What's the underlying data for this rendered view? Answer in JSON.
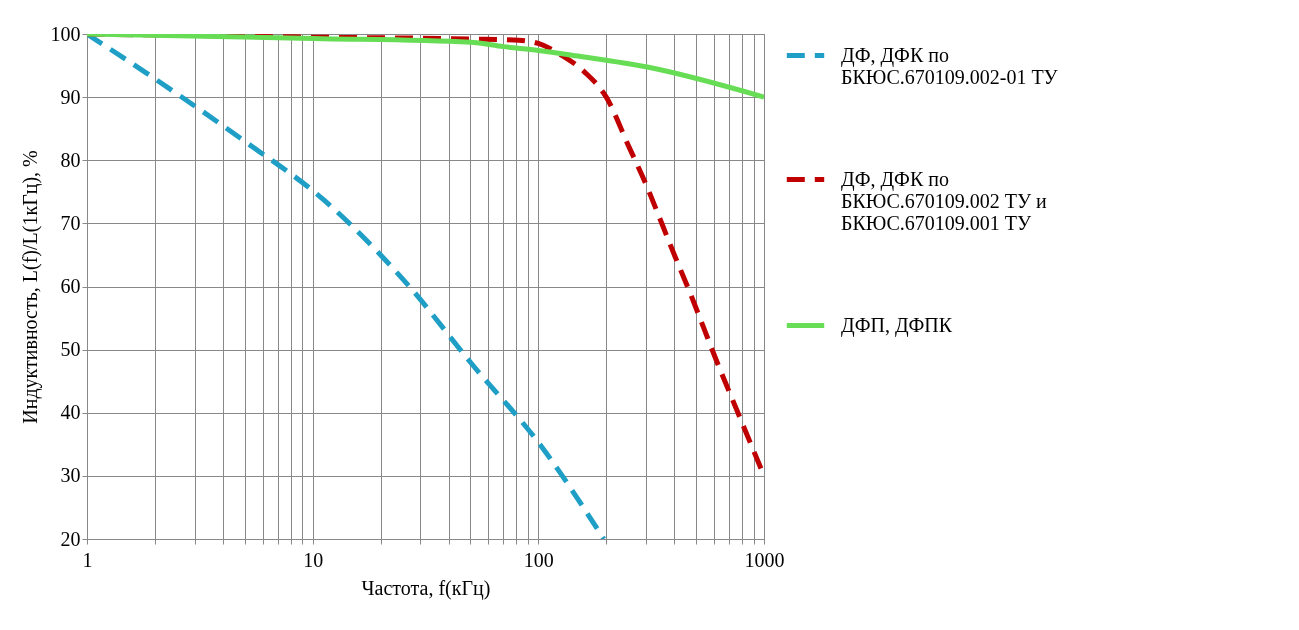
{
  "chart_data": {
    "type": "line",
    "xlabel": "Частота, f(кГц)",
    "ylabel": "Индуктивность, L(f)/L(1кГц), %",
    "log": "x",
    "grid": true,
    "legend": "right",
    "xlim": [
      1,
      1000
    ],
    "ylim": [
      20,
      100
    ],
    "xticks": [
      1,
      {
        "value": 2,
        "label": null
      },
      {
        "value": 3,
        "label": null
      },
      {
        "value": 4,
        "label": null
      },
      {
        "value": 5,
        "label": null
      },
      {
        "value": 6,
        "label": null
      },
      {
        "value": 7,
        "label": null
      },
      {
        "value": 8,
        "label": null
      },
      {
        "value": 9,
        "label": null
      },
      10,
      {
        "value": 20,
        "label": null
      },
      {
        "value": 30,
        "label": null
      },
      {
        "value": 40,
        "label": null
      },
      {
        "value": 50,
        "label": null
      },
      {
        "value": 60,
        "label": null
      },
      {
        "value": 70,
        "label": null
      },
      {
        "value": 80,
        "label": null
      },
      {
        "value": 90,
        "label": null
      },
      100,
      {
        "value": 200,
        "label": null
      },
      {
        "value": 300,
        "label": null
      },
      {
        "value": 400,
        "label": null
      },
      {
        "value": 500,
        "label": null
      },
      {
        "value": 600,
        "label": null
      },
      {
        "value": 700,
        "label": null
      },
      {
        "value": 800,
        "label": null
      },
      {
        "value": 900,
        "label": null
      },
      1000
    ],
    "yticks": [
      20,
      30,
      40,
      50,
      60,
      70,
      80,
      90,
      100
    ],
    "series": [
      {
        "name": "ДФ, ДФК по БКЮС.670109.002-01 ТУ",
        "color": "#1f9fc6",
        "line_style": "dashed",
        "x": [
          1,
          1.8,
          5,
          11.3,
          20,
          26.8,
          50,
          104,
          195
        ],
        "values": [
          100,
          94,
          83,
          73.6,
          65,
          60,
          48,
          34.5,
          20
        ]
      },
      {
        "name": "ДФ, ДФК по БКЮС.670109.002 ТУ и БКЮС.670109.001 ТУ",
        "color": "#c00000",
        "line_style": "dashed",
        "x": [
          1,
          10,
          50,
          82,
          100,
          126,
          160,
          200,
          253,
          289,
          405,
          458,
          636,
          717,
          1000
        ],
        "values": [
          100,
          99.5,
          99.2,
          99,
          98.5,
          96.7,
          94,
          90,
          82,
          77.5,
          64.6,
          60,
          47,
          42.5,
          30
        ]
      },
      {
        "name": "ДФП, ДФПК",
        "color": "#66dd55",
        "line_style": "solid",
        "x": [
          1,
          10,
          50,
          70,
          100,
          150,
          300,
          1000
        ],
        "values": [
          100,
          99.3,
          98.7,
          98,
          97.4,
          96.5,
          94.8,
          90
        ]
      }
    ]
  }
}
